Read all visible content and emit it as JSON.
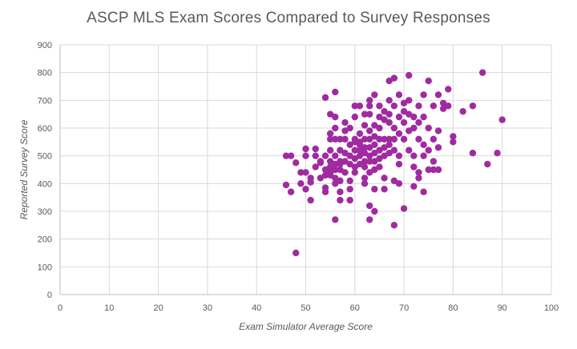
{
  "chart_data": {
    "type": "scatter",
    "title": "ASCP MLS Exam Scores Compared to Survey Responses",
    "xlabel": "Exam Simulator Average Score",
    "ylabel": "Reported Survey Score",
    "xlim": [
      0,
      100
    ],
    "ylim": [
      0,
      900
    ],
    "xticks": [
      "0",
      "10",
      "20",
      "30",
      "40",
      "50",
      "60",
      "70",
      "80",
      "90",
      "100"
    ],
    "yticks": [
      "0",
      "100",
      "200",
      "300",
      "400",
      "500",
      "600",
      "700",
      "800",
      "900"
    ],
    "grid": true,
    "legend": "none",
    "point_color": "#a02ba0",
    "points": [
      [
        46,
        500
      ],
      [
        47,
        500
      ],
      [
        46,
        395
      ],
      [
        47,
        370
      ],
      [
        48,
        150
      ],
      [
        48,
        475
      ],
      [
        49,
        400
      ],
      [
        49,
        440
      ],
      [
        50,
        380
      ],
      [
        50,
        525
      ],
      [
        50,
        500
      ],
      [
        50,
        440
      ],
      [
        51,
        340
      ],
      [
        51,
        405
      ],
      [
        51,
        420
      ],
      [
        52,
        500
      ],
      [
        52,
        525
      ],
      [
        52,
        460
      ],
      [
        53,
        480
      ],
      [
        53,
        475
      ],
      [
        53,
        420
      ],
      [
        54,
        710
      ],
      [
        54,
        385
      ],
      [
        54,
        370
      ],
      [
        54,
        430
      ],
      [
        54,
        450
      ],
      [
        54,
        500
      ],
      [
        55,
        650
      ],
      [
        55,
        460
      ],
      [
        55,
        430
      ],
      [
        55,
        560
      ],
      [
        55,
        580
      ],
      [
        55,
        520
      ],
      [
        55,
        480
      ],
      [
        55,
        440
      ],
      [
        56,
        730
      ],
      [
        56,
        640
      ],
      [
        56,
        600
      ],
      [
        56,
        560
      ],
      [
        56,
        500
      ],
      [
        56,
        470
      ],
      [
        56,
        450
      ],
      [
        56,
        420
      ],
      [
        56,
        400
      ],
      [
        56,
        270
      ],
      [
        57,
        370
      ],
      [
        57,
        340
      ],
      [
        57,
        450
      ],
      [
        57,
        480
      ],
      [
        57,
        520
      ],
      [
        57,
        560
      ],
      [
        57,
        470
      ],
      [
        57,
        410
      ],
      [
        58,
        620
      ],
      [
        58,
        590
      ],
      [
        58,
        510
      ],
      [
        58,
        480
      ],
      [
        58,
        440
      ],
      [
        58,
        560
      ],
      [
        59,
        600
      ],
      [
        59,
        540
      ],
      [
        59,
        500
      ],
      [
        59,
        470
      ],
      [
        59,
        410
      ],
      [
        59,
        380
      ],
      [
        59,
        340
      ],
      [
        60,
        680
      ],
      [
        60,
        640
      ],
      [
        60,
        550
      ],
      [
        60,
        520
      ],
      [
        60,
        490
      ],
      [
        60,
        460
      ],
      [
        60,
        440
      ],
      [
        60,
        560
      ],
      [
        61,
        680
      ],
      [
        61,
        580
      ],
      [
        61,
        540
      ],
      [
        61,
        500
      ],
      [
        61,
        470
      ],
      [
        61,
        520
      ],
      [
        61,
        550
      ],
      [
        62,
        650
      ],
      [
        62,
        610
      ],
      [
        62,
        560
      ],
      [
        62,
        530
      ],
      [
        62,
        510
      ],
      [
        62,
        480
      ],
      [
        62,
        460
      ],
      [
        62,
        420
      ],
      [
        62,
        400
      ],
      [
        63,
        700
      ],
      [
        63,
        680
      ],
      [
        63,
        650
      ],
      [
        63,
        590
      ],
      [
        63,
        560
      ],
      [
        63,
        530
      ],
      [
        63,
        500
      ],
      [
        63,
        480
      ],
      [
        63,
        440
      ],
      [
        63,
        320
      ],
      [
        63,
        270
      ],
      [
        64,
        720
      ],
      [
        64,
        610
      ],
      [
        64,
        570
      ],
      [
        64,
        540
      ],
      [
        64,
        510
      ],
      [
        64,
        480
      ],
      [
        64,
        450
      ],
      [
        64,
        380
      ],
      [
        64,
        300
      ],
      [
        65,
        680
      ],
      [
        65,
        640
      ],
      [
        65,
        600
      ],
      [
        65,
        560
      ],
      [
        65,
        520
      ],
      [
        65,
        490
      ],
      [
        65,
        460
      ],
      [
        66,
        660
      ],
      [
        66,
        630
      ],
      [
        66,
        560
      ],
      [
        66,
        530
      ],
      [
        66,
        500
      ],
      [
        66,
        380
      ],
      [
        66,
        420
      ],
      [
        67,
        770
      ],
      [
        67,
        700
      ],
      [
        67,
        650
      ],
      [
        67,
        620
      ],
      [
        67,
        560
      ],
      [
        67,
        540
      ],
      [
        67,
        510
      ],
      [
        68,
        780
      ],
      [
        68,
        680
      ],
      [
        68,
        600
      ],
      [
        68,
        560
      ],
      [
        68,
        520
      ],
      [
        68,
        410
      ],
      [
        68,
        250
      ],
      [
        69,
        720
      ],
      [
        69,
        640
      ],
      [
        69,
        580
      ],
      [
        69,
        500
      ],
      [
        69,
        470
      ],
      [
        69,
        400
      ],
      [
        70,
        690
      ],
      [
        70,
        660
      ],
      [
        70,
        620
      ],
      [
        70,
        560
      ],
      [
        70,
        310
      ],
      [
        71,
        790
      ],
      [
        71,
        700
      ],
      [
        71,
        650
      ],
      [
        71,
        590
      ],
      [
        71,
        520
      ],
      [
        72,
        640
      ],
      [
        72,
        600
      ],
      [
        72,
        500
      ],
      [
        72,
        460
      ],
      [
        72,
        390
      ],
      [
        73,
        680
      ],
      [
        73,
        620
      ],
      [
        73,
        560
      ],
      [
        73,
        440
      ],
      [
        73,
        420
      ],
      [
        74,
        720
      ],
      [
        74,
        640
      ],
      [
        74,
        540
      ],
      [
        74,
        500
      ],
      [
        74,
        370
      ],
      [
        75,
        770
      ],
      [
        75,
        600
      ],
      [
        75,
        520
      ],
      [
        75,
        450
      ],
      [
        76,
        680
      ],
      [
        76,
        560
      ],
      [
        76,
        480
      ],
      [
        76,
        450
      ],
      [
        77,
        720
      ],
      [
        77,
        590
      ],
      [
        77,
        530
      ],
      [
        77,
        450
      ],
      [
        78,
        690
      ],
      [
        78,
        670
      ],
      [
        79,
        740
      ],
      [
        79,
        680
      ],
      [
        80,
        570
      ],
      [
        80,
        550
      ],
      [
        82,
        660
      ],
      [
        84,
        680
      ],
      [
        84,
        510
      ],
      [
        86,
        800
      ],
      [
        87,
        470
      ],
      [
        89,
        510
      ],
      [
        90,
        630
      ]
    ]
  }
}
